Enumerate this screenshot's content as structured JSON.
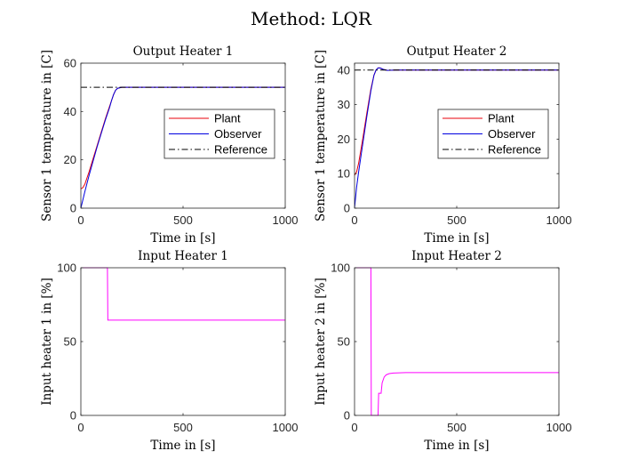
{
  "figure": {
    "title": "Method: LQR"
  },
  "colors": {
    "plant": "#e8000b",
    "observer": "#0000e0",
    "reference": "#000000",
    "input": "#ff00ff",
    "axis": "#262626",
    "background": "#ffffff"
  },
  "chart_data": [
    {
      "type": "line",
      "title": "Output Heater 1",
      "xlabel": "Time in [s]",
      "ylabel": "Sensor 1 temperature in [C]",
      "xlim": [
        0,
        1000
      ],
      "ylim": [
        0,
        60
      ],
      "xticks": [
        0,
        500,
        1000
      ],
      "yticks": [
        0,
        20,
        40,
        60
      ],
      "grid": false,
      "legend": "center-right",
      "series": [
        {
          "name": "Plant",
          "color": "#e8000b",
          "dash": "solid",
          "x": [
            0,
            10,
            20,
            40,
            60,
            80,
            100,
            120,
            140,
            150,
            160,
            170,
            180,
            200,
            300,
            500,
            800,
            1000
          ],
          "y": [
            8,
            8.5,
            10,
            15,
            20.5,
            26,
            31.5,
            37,
            42,
            44.5,
            47,
            48.8,
            49.6,
            50,
            50,
            50,
            50,
            50
          ]
        },
        {
          "name": "Observer",
          "color": "#0000e0",
          "dash": "solid",
          "x": [
            0,
            10,
            20,
            40,
            60,
            80,
            100,
            120,
            140,
            150,
            160,
            170,
            180,
            200,
            300,
            500,
            800,
            1000
          ],
          "y": [
            0,
            3.5,
            7,
            13.5,
            19.5,
            25.5,
            31,
            36.5,
            41.5,
            44.5,
            47,
            48.8,
            49.6,
            50,
            50,
            50,
            50,
            50
          ]
        },
        {
          "name": "Reference",
          "color": "#000000",
          "dash": "dashdot",
          "x": [
            0,
            1000
          ],
          "y": [
            50,
            50
          ]
        }
      ]
    },
    {
      "type": "line",
      "title": "Output Heater 2",
      "xlabel": "Time in [s]",
      "ylabel": "Sensor 1 temperature in [C]",
      "xlim": [
        0,
        1000
      ],
      "ylim": [
        0,
        42
      ],
      "xticks": [
        0,
        500,
        1000
      ],
      "yticks": [
        0,
        10,
        20,
        30,
        40
      ],
      "grid": false,
      "legend": "center-right",
      "series": [
        {
          "name": "Plant",
          "color": "#e8000b",
          "dash": "solid",
          "x": [
            0,
            10,
            20,
            40,
            60,
            80,
            95,
            105,
            115,
            125,
            140,
            160,
            200,
            300,
            500,
            800,
            1000
          ],
          "y": [
            9.5,
            10.5,
            13,
            20,
            27.5,
            34.5,
            38.5,
            40,
            40.6,
            40.6,
            40.2,
            39.9,
            40,
            40,
            40,
            40,
            40
          ]
        },
        {
          "name": "Observer",
          "color": "#0000e0",
          "dash": "solid",
          "x": [
            0,
            10,
            20,
            40,
            60,
            80,
            95,
            105,
            115,
            125,
            140,
            160,
            200,
            300,
            500,
            800,
            1000
          ],
          "y": [
            0,
            6,
            10.5,
            18.5,
            26.5,
            34,
            38.5,
            40,
            40.6,
            40.6,
            40.2,
            39.9,
            40,
            40,
            40,
            40,
            40
          ]
        },
        {
          "name": "Reference",
          "color": "#000000",
          "dash": "dashdot",
          "x": [
            0,
            1000
          ],
          "y": [
            40,
            40
          ]
        }
      ]
    },
    {
      "type": "line",
      "title": "Input Heater 1",
      "xlabel": "Time in [s]",
      "ylabel": "Input heater 1 in [%]",
      "xlim": [
        0,
        1000
      ],
      "ylim": [
        0,
        100
      ],
      "xticks": [
        0,
        500,
        1000
      ],
      "yticks": [
        0,
        50,
        100
      ],
      "grid": false,
      "legend": "none",
      "series": [
        {
          "color": "#ff00ff",
          "dash": "solid",
          "x": [
            0,
            130,
            132,
            1000
          ],
          "y": [
            100,
            100,
            64.5,
            64.5
          ]
        }
      ]
    },
    {
      "type": "line",
      "title": "Input Heater 2",
      "xlabel": "Time in [s]",
      "ylabel": "Input heater 2 in [%]",
      "xlim": [
        0,
        1000
      ],
      "ylim": [
        0,
        100
      ],
      "xticks": [
        0,
        500,
        1000
      ],
      "yticks": [
        0,
        50,
        100
      ],
      "grid": false,
      "legend": "none",
      "series": [
        {
          "color": "#ff00ff",
          "dash": "solid",
          "x": [
            0,
            80,
            82,
            115,
            118,
            130,
            135,
            145,
            155,
            170,
            190,
            250,
            400,
            1000
          ],
          "y": [
            100,
            100,
            0,
            0,
            15,
            15,
            22,
            26,
            27.5,
            28.3,
            28.7,
            29,
            29,
            29
          ]
        }
      ]
    }
  ]
}
